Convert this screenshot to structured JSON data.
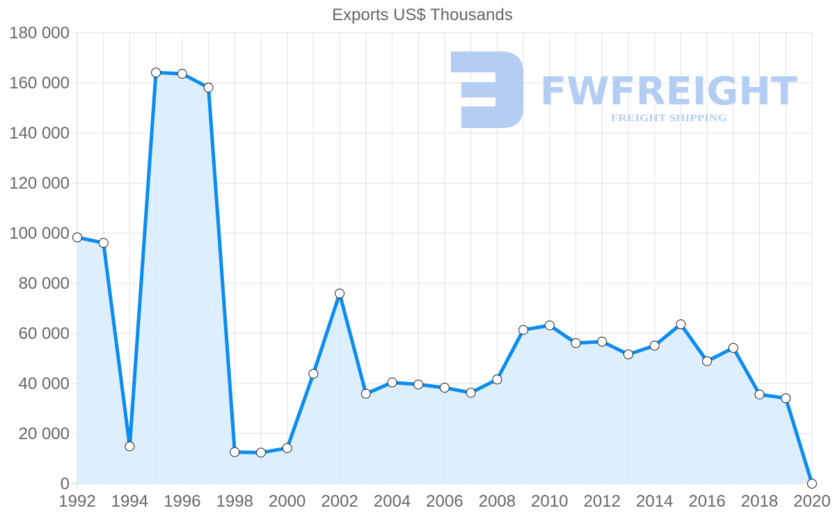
{
  "chart_data": {
    "type": "line",
    "title": "Exports US$ Thousands",
    "xlabel": "",
    "ylabel": "",
    "ylim": [
      0,
      180000
    ],
    "y_ticks": [
      "0",
      "20 000",
      "40 000",
      "60 000",
      "80 000",
      "100 000",
      "120 000",
      "140 000",
      "160 000",
      "180 000"
    ],
    "x_tick_labels": [
      "1992",
      "1994",
      "1996",
      "1998",
      "2000",
      "2002",
      "2004",
      "2006",
      "2008",
      "2010",
      "2012",
      "2014",
      "2016",
      "2018",
      "2020"
    ],
    "grid": true,
    "legend": null,
    "fill": true,
    "x": [
      1992,
      1993,
      1994,
      1995,
      1996,
      1997,
      1998,
      1999,
      2000,
      2001,
      2002,
      2003,
      2004,
      2005,
      2006,
      2007,
      2008,
      2009,
      2010,
      2011,
      2012,
      2013,
      2014,
      2015,
      2016,
      2017,
      2018,
      2019,
      2020
    ],
    "series": [
      {
        "name": "Exports",
        "values": [
          98300,
          96100,
          14900,
          164100,
          163600,
          158100,
          12600,
          12400,
          14200,
          43900,
          75900,
          35900,
          40400,
          39600,
          38300,
          36300,
          41600,
          61400,
          63200,
          56100,
          56700,
          51600,
          55100,
          63600,
          48900,
          54200,
          35600,
          34100,
          0
        ]
      }
    ]
  },
  "colors": {
    "line": "#0b8cf0",
    "fill": "#d9ecfc",
    "grid": "#e1e1e1",
    "text": "#666666",
    "watermark": "#b4cdf3"
  },
  "watermark": {
    "brand": "FWFREIGHT",
    "tagline": "FREIGHT SHIPPING"
  }
}
